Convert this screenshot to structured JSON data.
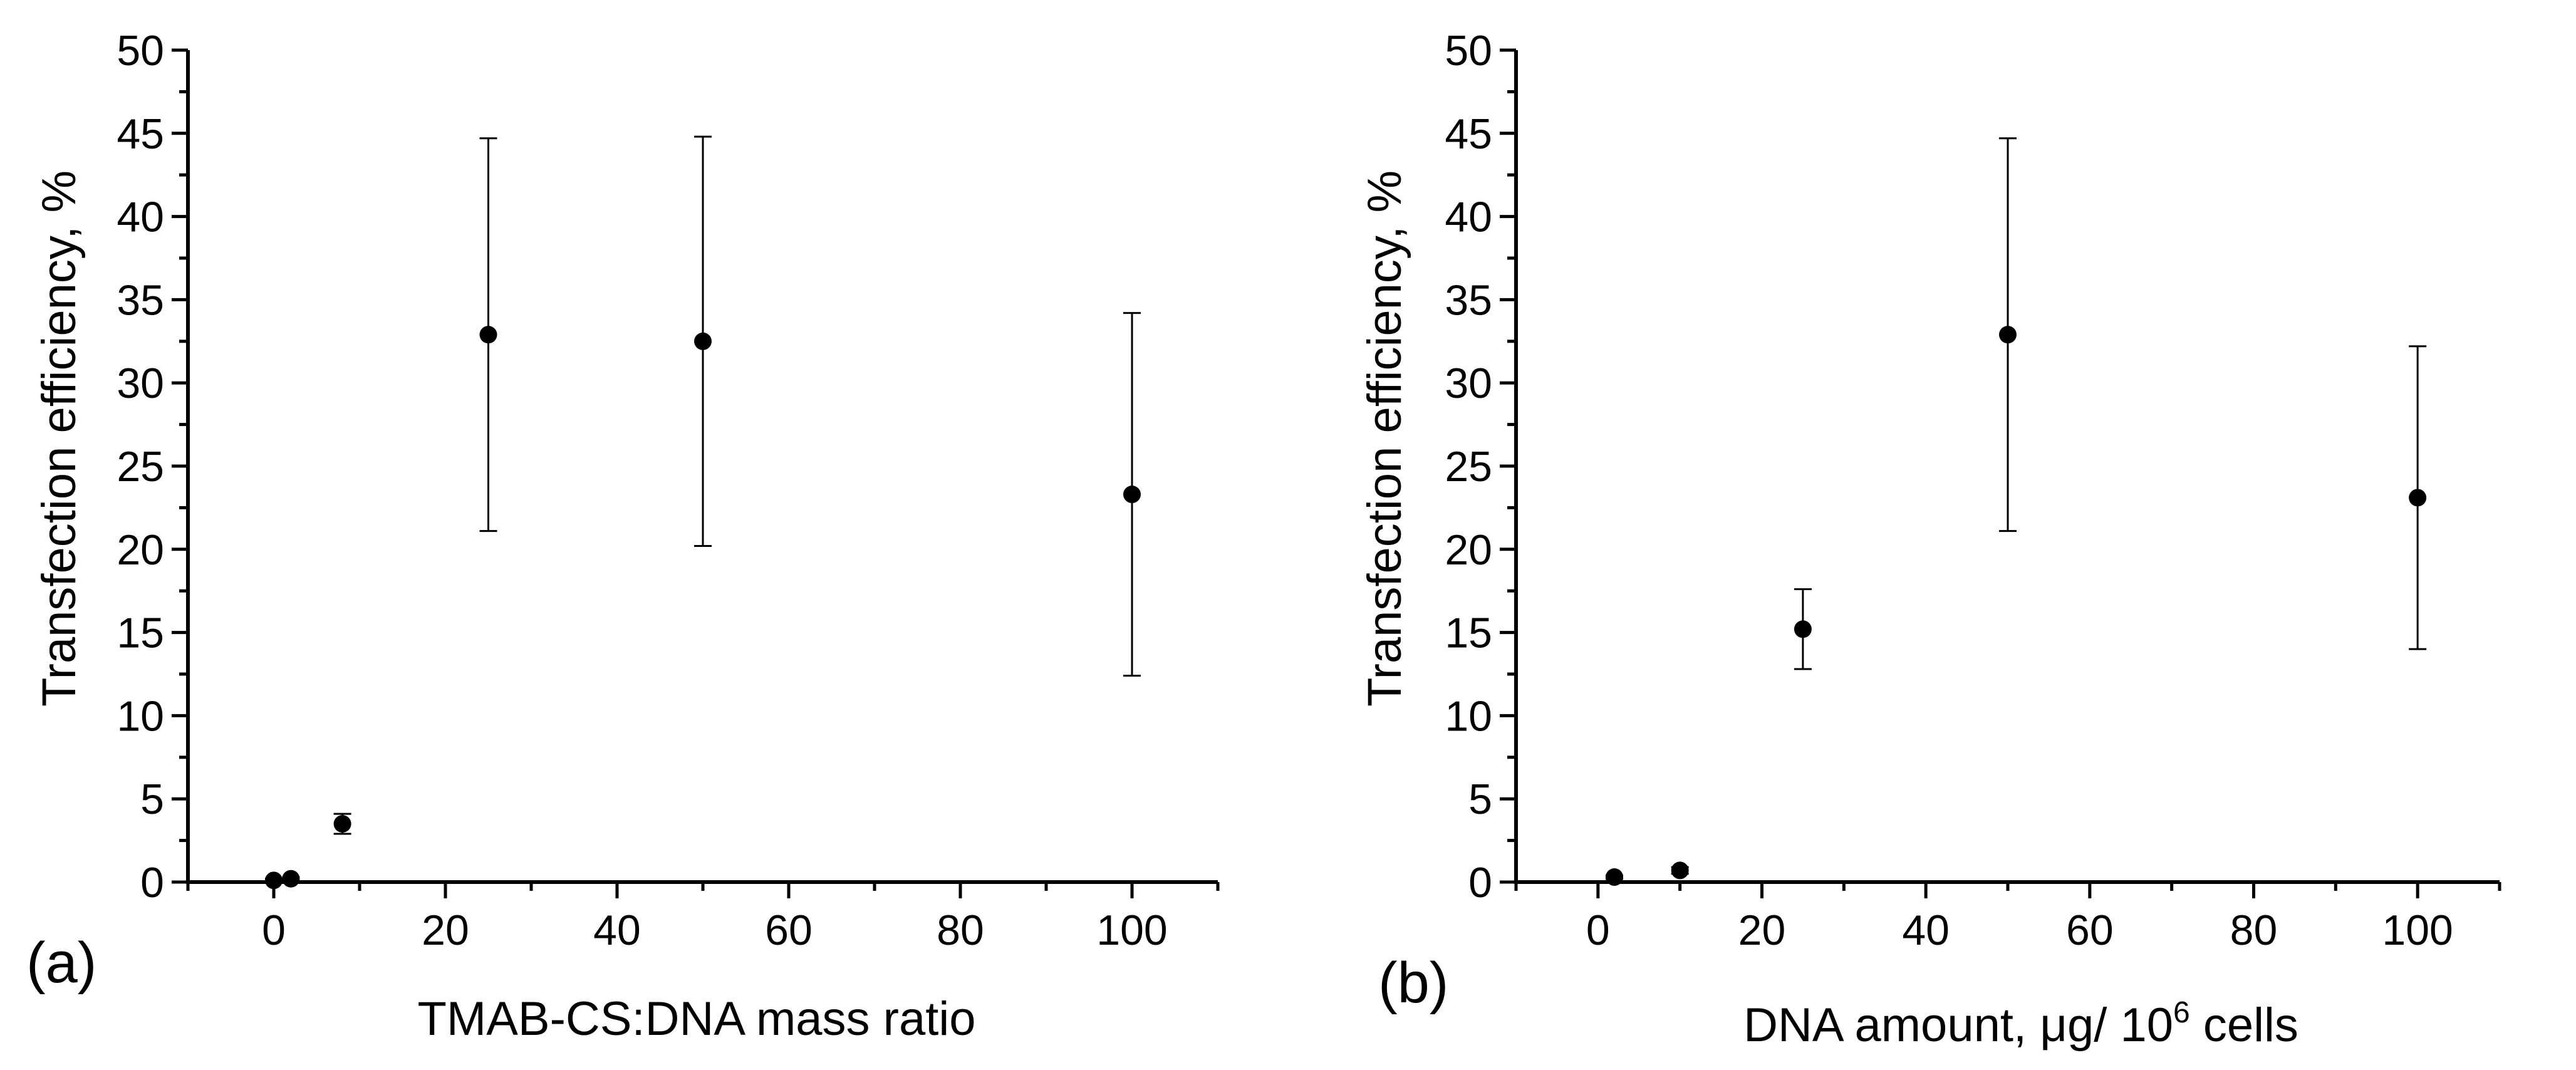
{
  "chart_data": [
    {
      "type": "scatter",
      "panel_label": "(a)",
      "title": "",
      "xlabel": "TMAB-CS:DNA mass ratio",
      "ylabel": "Transfection efficiency, %",
      "xlim": [
        -10,
        110
      ],
      "ylim": [
        0,
        50
      ],
      "x_ticks": [
        0,
        20,
        40,
        60,
        80,
        100
      ],
      "y_ticks": [
        0,
        5,
        10,
        15,
        20,
        25,
        30,
        35,
        40,
        45,
        50
      ],
      "grid": false,
      "series": [
        {
          "name": "Transfection efficiency",
          "points": [
            {
              "x": 0,
              "y": 0.1,
              "err": 0.1
            },
            {
              "x": 2,
              "y": 0.2,
              "err": 0.1
            },
            {
              "x": 8,
              "y": 3.5,
              "err": 0.6
            },
            {
              "x": 25,
              "y": 32.9,
              "err": 11.8
            },
            {
              "x": 50,
              "y": 32.5,
              "err": 12.3
            },
            {
              "x": 100,
              "y": 23.3,
              "err": 10.9
            }
          ]
        }
      ]
    },
    {
      "type": "scatter",
      "panel_label": "(b)",
      "title": "",
      "xlabel": "DNA amount, μg/ 10⁶ cells",
      "xlabel_parts": {
        "main": "DNA amount, μg/ 10",
        "sup": "6",
        "tail": " cells"
      },
      "ylabel": "Transfection efficiency, %",
      "xlim": [
        -10,
        110
      ],
      "ylim": [
        0,
        50
      ],
      "x_ticks": [
        0,
        20,
        40,
        60,
        80,
        100
      ],
      "y_ticks": [
        0,
        5,
        10,
        15,
        20,
        25,
        30,
        35,
        40,
        45,
        50
      ],
      "grid": false,
      "series": [
        {
          "name": "Transfection efficiency",
          "points": [
            {
              "x": 2,
              "y": 0.3,
              "err": 0.1
            },
            {
              "x": 10,
              "y": 0.7,
              "err": 0.2
            },
            {
              "x": 25,
              "y": 15.2,
              "err": 2.4
            },
            {
              "x": 50,
              "y": 32.9,
              "err": 11.8
            },
            {
              "x": 100,
              "y": 23.1,
              "err": 9.1
            }
          ]
        }
      ]
    }
  ]
}
